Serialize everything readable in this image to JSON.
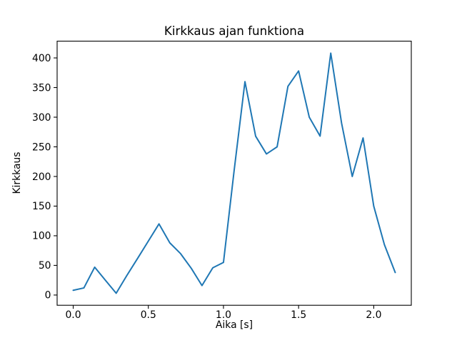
{
  "chart_data": {
    "type": "line",
    "title": "Kirkkaus ajan funktiona",
    "xlabel": "Aika [s]",
    "ylabel": "Kirkkaus",
    "line_color": "#1f77b4",
    "grid": false,
    "legend": null,
    "x": [
      0.0,
      0.071,
      0.143,
      0.214,
      0.286,
      0.357,
      0.429,
      0.5,
      0.571,
      0.643,
      0.714,
      0.786,
      0.857,
      0.929,
      1.0,
      1.071,
      1.143,
      1.214,
      1.286,
      1.357,
      1.429,
      1.5,
      1.571,
      1.643,
      1.714,
      1.786,
      1.857,
      1.929,
      2.0,
      2.071,
      2.143
    ],
    "y": [
      8,
      12,
      47,
      25,
      3,
      33,
      62,
      91,
      120,
      88,
      70,
      45,
      16,
      46,
      55,
      210,
      360,
      268,
      238,
      250,
      352,
      378,
      300,
      268,
      408,
      290,
      200,
      265,
      150,
      85,
      38
    ],
    "xlim": [
      -0.107,
      2.25
    ],
    "ylim": [
      -17.25,
      428.25
    ],
    "xticks": [
      0.0,
      0.5,
      1.0,
      1.5,
      2.0
    ],
    "xtick_labels": [
      "0.0",
      "0.5",
      "1.0",
      "1.5",
      "2.0"
    ],
    "yticks": [
      0,
      50,
      100,
      150,
      200,
      250,
      300,
      350,
      400
    ],
    "ytick_labels": [
      "0",
      "50",
      "100",
      "150",
      "200",
      "250",
      "300",
      "350",
      "400"
    ]
  }
}
